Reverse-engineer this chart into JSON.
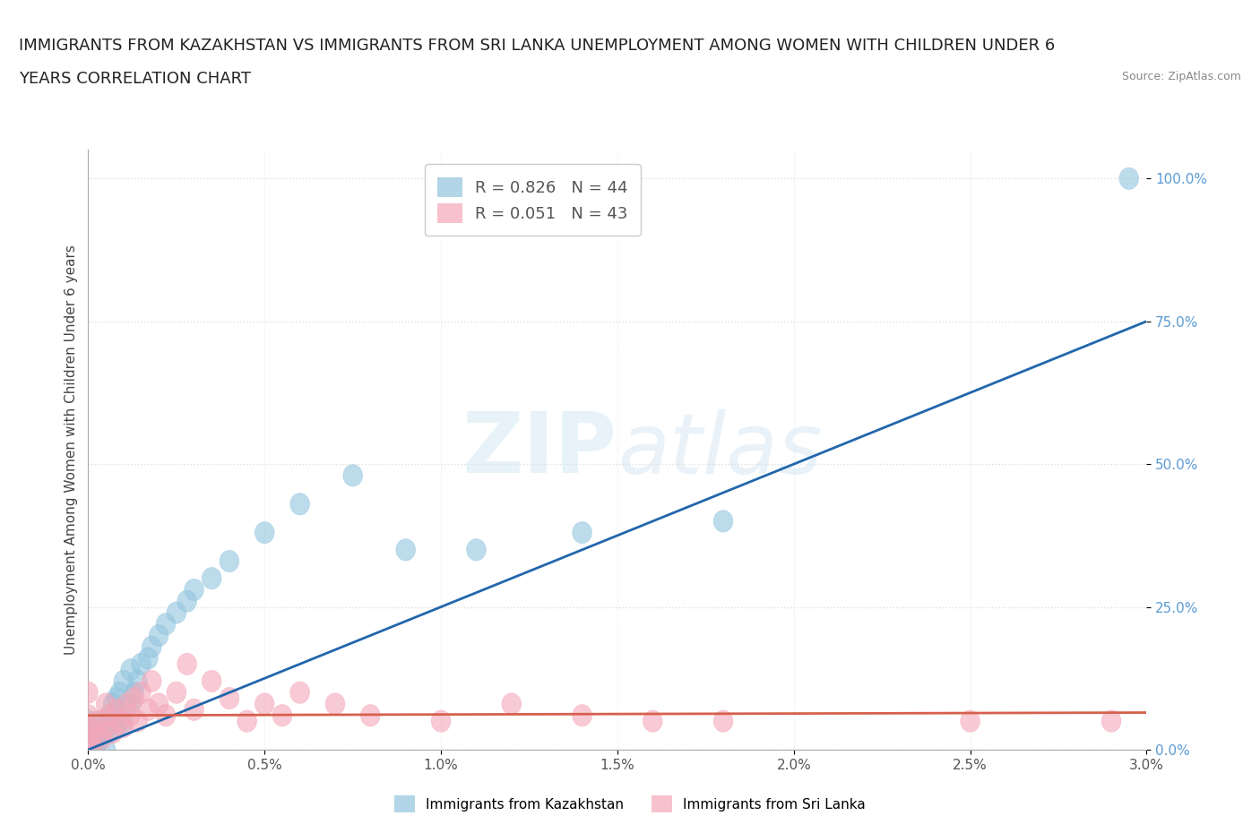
{
  "title_line1": "IMMIGRANTS FROM KAZAKHSTAN VS IMMIGRANTS FROM SRI LANKA UNEMPLOYMENT AMONG WOMEN WITH CHILDREN UNDER 6",
  "title_line2": "YEARS CORRELATION CHART",
  "source": "Source: ZipAtlas.com",
  "ylabel_label": "Unemployment Among Women with Children Under 6 years",
  "legend_kaz": "Immigrants from Kazakhstan",
  "legend_sri": "Immigrants from Sri Lanka",
  "r_kaz": "R = 0.826",
  "n_kaz": "N = 44",
  "r_sri": "R = 0.051",
  "n_sri": "N = 43",
  "color_kaz": "#92c5de",
  "color_sri": "#f4a7b9",
  "line_kaz": "#2166ac",
  "line_sri": "#d6604d",
  "background": "#ffffff",
  "kaz_x": [
    0.0,
    0.0,
    0.0,
    0.0,
    0.0,
    0.02,
    0.02,
    0.03,
    0.04,
    0.04,
    0.05,
    0.05,
    0.06,
    0.06,
    0.07,
    0.07,
    0.08,
    0.08,
    0.09,
    0.09,
    0.1,
    0.1,
    0.12,
    0.12,
    0.13,
    0.14,
    0.15,
    0.17,
    0.18,
    0.2,
    0.22,
    0.25,
    0.28,
    0.3,
    0.35,
    0.4,
    0.5,
    0.6,
    0.75,
    0.9,
    1.1,
    1.4,
    1.8,
    2.95
  ],
  "kaz_y": [
    0.0,
    1.0,
    2.0,
    3.0,
    5.0,
    0.5,
    2.0,
    1.5,
    3.0,
    5.0,
    0.0,
    4.0,
    3.0,
    6.0,
    5.0,
    8.0,
    4.0,
    9.0,
    6.0,
    10.0,
    5.0,
    12.0,
    8.0,
    14.0,
    10.0,
    12.0,
    15.0,
    16.0,
    18.0,
    20.0,
    22.0,
    24.0,
    26.0,
    28.0,
    30.0,
    33.0,
    38.0,
    43.0,
    48.0,
    35.0,
    35.0,
    38.0,
    40.0,
    100.0
  ],
  "sri_x": [
    0.0,
    0.0,
    0.0,
    0.0,
    0.0,
    0.01,
    0.02,
    0.03,
    0.04,
    0.05,
    0.05,
    0.06,
    0.07,
    0.08,
    0.09,
    0.1,
    0.11,
    0.12,
    0.13,
    0.14,
    0.15,
    0.17,
    0.18,
    0.2,
    0.22,
    0.25,
    0.28,
    0.3,
    0.35,
    0.4,
    0.45,
    0.5,
    0.55,
    0.6,
    0.7,
    0.8,
    1.0,
    1.2,
    1.4,
    1.6,
    1.8,
    2.5,
    2.9
  ],
  "sri_y": [
    0.0,
    2.0,
    4.0,
    6.0,
    10.0,
    1.0,
    3.0,
    5.0,
    2.0,
    4.0,
    8.0,
    6.0,
    3.0,
    7.0,
    5.0,
    4.0,
    8.0,
    6.0,
    9.0,
    5.0,
    10.0,
    7.0,
    12.0,
    8.0,
    6.0,
    10.0,
    15.0,
    7.0,
    12.0,
    9.0,
    5.0,
    8.0,
    6.0,
    10.0,
    8.0,
    6.0,
    5.0,
    8.0,
    6.0,
    5.0,
    5.0,
    5.0,
    5.0
  ],
  "kaz_trend_x": [
    0.0,
    3.0
  ],
  "kaz_trend_y": [
    0.0,
    75.0
  ],
  "sri_trend_x": [
    0.0,
    3.0
  ],
  "sri_trend_y": [
    6.0,
    6.5
  ],
  "xlim": [
    0.0,
    3.0
  ],
  "ylim": [
    0.0,
    105.0
  ],
  "xtick_vals": [
    0.0,
    0.5,
    1.0,
    1.5,
    2.0,
    2.5,
    3.0
  ],
  "ytick_vals": [
    0.0,
    25.0,
    50.0,
    75.0,
    100.0
  ],
  "grid_color": "#dddddd",
  "title_fontsize": 13,
  "tick_fontsize": 11,
  "ylabel_fontsize": 11,
  "legend_fontsize": 13,
  "ytick_color": "#5b9bd5"
}
